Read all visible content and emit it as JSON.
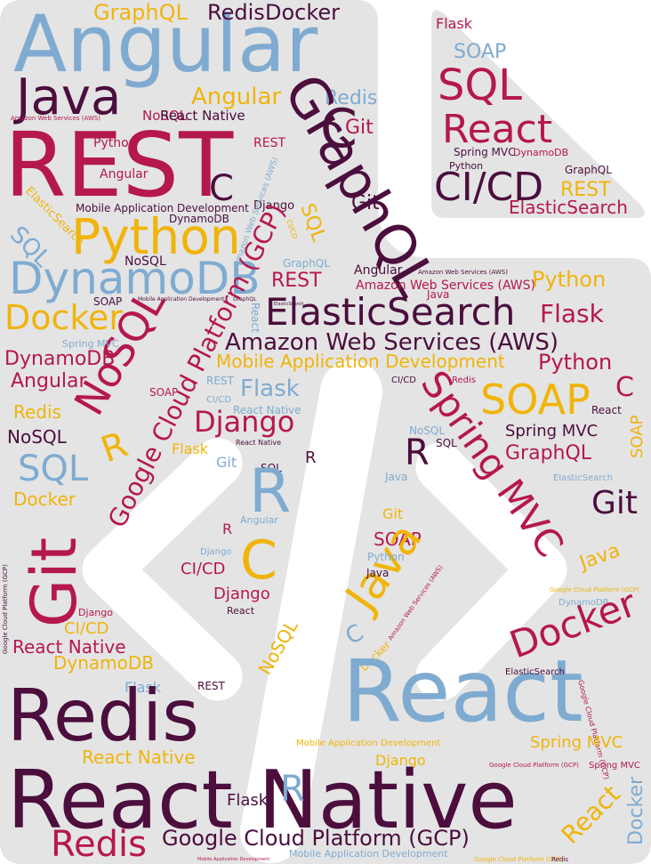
{
  "words": [
    "Angular",
    "GraphQL",
    "Redis",
    "Docker",
    "Java",
    "Angular",
    "Redis",
    "NoSQL",
    "React Native",
    "Amazon Web Services (AWS)",
    "REST",
    "C",
    "Git",
    "Python",
    "REST",
    "Angular",
    "C",
    "GraphQL",
    "Django",
    "Git",
    "ElasticSearch",
    "Mobile Application Development",
    "DynamoDB",
    "Amazon Web Services (AWS)",
    "Python",
    "SQL",
    "NoSQL",
    "SQL",
    "CI/CD",
    "DynamoDB",
    "GraphQL",
    "Angular",
    "Amazon Web Services (AWS)",
    "Google Cloud Platform (GCP)",
    "REST",
    "Amazon Web Services (AWS)",
    "Java",
    "Python",
    "Docker",
    "SOAP",
    "Mobile Application Development",
    "GraphQL",
    "React",
    "ElasticSearch",
    "ElasticSearch",
    "Flask",
    "NoSQL",
    "Spring MVC",
    "Amazon Web Services (AWS)",
    "DynamoDB",
    "Mobile Application Development",
    "Python",
    "Angular",
    "REST",
    "CI/CD",
    "Redis",
    "SOAP",
    "CI/CD",
    "Flask",
    "SOAP",
    "C",
    "Spring MVC",
    "React Native",
    "Redis",
    "Django",
    "SOAP",
    "React",
    "NoSQL",
    "NoSQL",
    "Spring MVC",
    "React Native",
    "R",
    "Flask",
    "SQL",
    "GraphQL",
    "R",
    "SQL",
    "Git",
    "SQL",
    "R",
    "R",
    "ElasticSearch",
    "Java",
    "Git",
    "Docker",
    "Angular",
    "Git",
    "Git",
    "R",
    "SOAP",
    "C",
    "Java",
    "Django",
    "Java",
    "Python",
    "CI/CD",
    "Java",
    "Amazon Web Services (AWS)",
    "Google Cloud Platform (GCP)",
    "Django",
    "DynamoDB",
    "Google Cloud Platform (GCP)",
    "Django",
    "React",
    "CI/CD",
    "React Native",
    "NoSQL",
    "C",
    "Docker",
    "Docker",
    "DynamoDB",
    "React",
    "ElasticSearch",
    "Flask",
    "REST",
    "Redis",
    "Google Cloud Platform (GCP)",
    "Mobile Application Development",
    "Spring MVC",
    "React Native",
    "Django",
    "Google Cloud Platform (GCP)",
    "Spring MVC",
    "React Native",
    "R",
    "Flask",
    "Docker",
    "React",
    "Redis",
    "Google Cloud Platform (GCP)",
    "Mobile Application Development",
    "Mobile Application Development",
    "Google Cloud Platform (GCP)",
    "Redis",
    "Flask",
    "SOAP",
    "SQL",
    "React",
    "Spring MVC",
    "DynamoDB",
    "Python",
    "CI/CD",
    "GraphQL",
    "REST",
    "ElasticSearch"
  ]
}
